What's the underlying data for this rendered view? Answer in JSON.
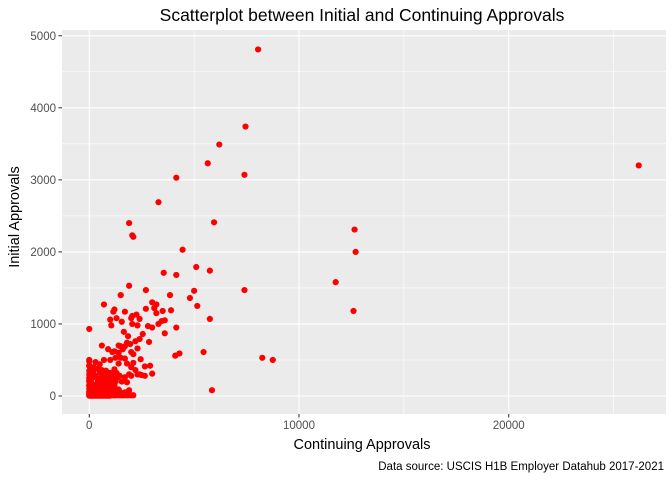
{
  "chart_data": {
    "type": "scatter",
    "title": "Scatterplot between Initial and Continuing Approvals",
    "xlabel": "Continuing Approvals",
    "ylabel": "Initial Approvals",
    "caption": "Data source: USCIS H1B Employer Datahub 2017-2021",
    "xlim": [
      -1300,
      27500
    ],
    "ylim": [
      -250,
      5080
    ],
    "xticks": [
      0,
      10000,
      20000
    ],
    "yticks": [
      0,
      1000,
      2000,
      3000,
      4000,
      5000
    ],
    "grid": true,
    "panel_color": "#ebebeb",
    "point_color": "#ff0000",
    "x": [
      8050,
      7450,
      6200,
      5650,
      7400,
      4150,
      26200,
      3300,
      12650,
      5950,
      1900,
      2050,
      2100,
      12700,
      4450,
      11750,
      5100,
      5750,
      3550,
      4150,
      7400,
      5000,
      1900,
      4800,
      2700,
      3850,
      5150,
      3200,
      12600,
      3500,
      1500,
      1150,
      3900,
      5750,
      2000,
      4150,
      2250,
      1000,
      0,
      8250,
      8750,
      5450,
      4300,
      4100,
      5850,
      3300,
      3600,
      3000,
      3100,
      3200,
      700,
      1200,
      2700,
      1700,
      2050,
      2400,
      2800,
      3000,
      3450,
      1300,
      1550,
      1050,
      2050,
      2300,
      3600,
      1650,
      2200,
      2550,
      2850,
      1850,
      2400,
      1400,
      1800,
      1700,
      1950,
      1500,
      1600,
      2000,
      1200,
      1400,
      2100,
      1500,
      2300,
      1700,
      1800,
      2100,
      1400,
      2450,
      2650,
      2900,
      2000,
      1200,
      2200,
      3000,
      2500,
      2650,
      1300,
      1900,
      2400,
      1100,
      1450,
      1700,
      2000,
      2300,
      1250,
      1550,
      1800,
      600,
      900,
      1100,
      1250,
      1000,
      0,
      50,
      100,
      200,
      300,
      400,
      500,
      600,
      700,
      800,
      900,
      1000,
      1100,
      0,
      150,
      300,
      450,
      600,
      750,
      900,
      1050,
      1200,
      1350,
      50,
      200,
      350,
      500,
      650,
      800,
      950,
      1100,
      100,
      250,
      400,
      550,
      700,
      850,
      1000,
      1150,
      1300,
      0,
      150,
      300,
      450,
      600,
      750,
      900,
      1050,
      50,
      200,
      350,
      500,
      650,
      800,
      950,
      1100,
      1250,
      1400,
      100,
      250,
      400,
      550,
      700,
      850,
      1000,
      0,
      150,
      300,
      450,
      600,
      750,
      900,
      1050,
      1200,
      1500,
      50,
      200,
      350,
      500,
      650,
      800,
      950,
      1100,
      1300,
      1600,
      100,
      250,
      400,
      550,
      700,
      850,
      1000,
      1200,
      1450,
      1700,
      1900,
      0,
      200,
      400,
      600,
      800,
      1000,
      300,
      500,
      700,
      100,
      0,
      0,
      0,
      0,
      0,
      0,
      0,
      0,
      0,
      0,
      0,
      0,
      50,
      100,
      150,
      200,
      250,
      300,
      350,
      400,
      450,
      500,
      550,
      600,
      650,
      700,
      750,
      800,
      850,
      900,
      950,
      1000,
      1100,
      1200,
      1300,
      1400,
      1500,
      1600,
      1700,
      1800,
      1900,
      2000,
      2100
    ],
    "y": [
      4810,
      3740,
      3490,
      3230,
      3070,
      3030,
      3200,
      2690,
      2310,
      2410,
      2400,
      2230,
      2210,
      2000,
      2030,
      1580,
      1790,
      1740,
      1710,
      1680,
      1470,
      1460,
      1530,
      1360,
      1470,
      1400,
      1250,
      1270,
      1180,
      1180,
      1400,
      1170,
      1190,
      1070,
      1080,
      950,
      1130,
      1060,
      930,
      530,
      500,
      610,
      590,
      560,
      80,
      1000,
      1050,
      1300,
      1220,
      1150,
      1270,
      1200,
      1210,
      1170,
      1110,
      1070,
      970,
      950,
      1040,
      1080,
      1030,
      980,
      1000,
      980,
      870,
      890,
      760,
      860,
      750,
      830,
      790,
      700,
      740,
      690,
      720,
      690,
      650,
      610,
      620,
      600,
      580,
      530,
      660,
      520,
      450,
      460,
      450,
      510,
      410,
      420,
      400,
      370,
      360,
      310,
      290,
      280,
      320,
      300,
      300,
      250,
      280,
      260,
      280,
      300,
      200,
      200,
      190,
      700,
      650,
      610,
      530,
      500,
      500,
      310,
      370,
      350,
      270,
      240,
      330,
      290,
      250,
      350,
      300,
      260,
      310,
      220,
      250,
      280,
      190,
      240,
      160,
      300,
      200,
      150,
      260,
      200,
      120,
      160,
      150,
      200,
      230,
      210,
      170,
      140,
      110,
      190,
      80,
      120,
      160,
      130,
      180,
      90,
      140,
      100,
      130,
      90,
      60,
      120,
      150,
      100,
      70,
      110,
      60,
      80,
      100,
      80,
      60,
      70,
      50,
      90,
      40,
      60,
      50,
      70,
      50,
      40,
      20,
      30,
      40,
      30,
      30,
      40,
      60,
      40,
      80,
      20,
      30,
      20,
      30,
      20,
      30,
      40,
      10,
      20,
      20,
      40,
      10,
      20,
      20,
      50,
      10,
      30,
      20,
      20,
      10,
      60,
      50,
      80,
      420,
      400,
      380,
      360,
      340,
      320,
      470,
      440,
      500,
      180,
      480,
      250,
      100,
      50,
      10,
      5,
      150,
      200,
      300,
      350,
      420,
      60,
      5,
      5,
      5,
      5,
      5,
      5,
      5,
      5,
      5,
      5,
      5,
      5,
      5,
      5,
      5,
      5,
      5,
      5,
      5,
      5,
      10,
      10,
      10,
      10,
      10,
      10,
      10,
      10,
      10,
      10,
      10
    ]
  }
}
